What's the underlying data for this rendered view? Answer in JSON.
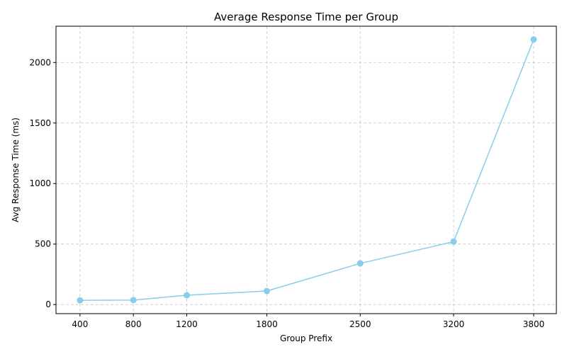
{
  "chart_data": {
    "type": "line",
    "title": "Average Response Time per Group",
    "xlabel": "Group Prefix",
    "ylabel": "Avg Response Time (ms)",
    "x": [
      400,
      800,
      1200,
      1800,
      2500,
      3200,
      3800
    ],
    "x_tick_labels": [
      "400",
      "800",
      "1200",
      "1800",
      "2500",
      "3200",
      "3800"
    ],
    "y_ticks": [
      0,
      500,
      1000,
      1500,
      2000
    ],
    "y_tick_labels": [
      "0",
      "500",
      "1000",
      "1500",
      "2000"
    ],
    "xlim": [
      220,
      3970
    ],
    "ylim": [
      -75,
      2300
    ],
    "grid": true,
    "series": [
      {
        "name": "",
        "color": "#87CEEB",
        "marker": "circle",
        "values": [
          35,
          37,
          77,
          112,
          340,
          520,
          2190
        ]
      }
    ]
  }
}
